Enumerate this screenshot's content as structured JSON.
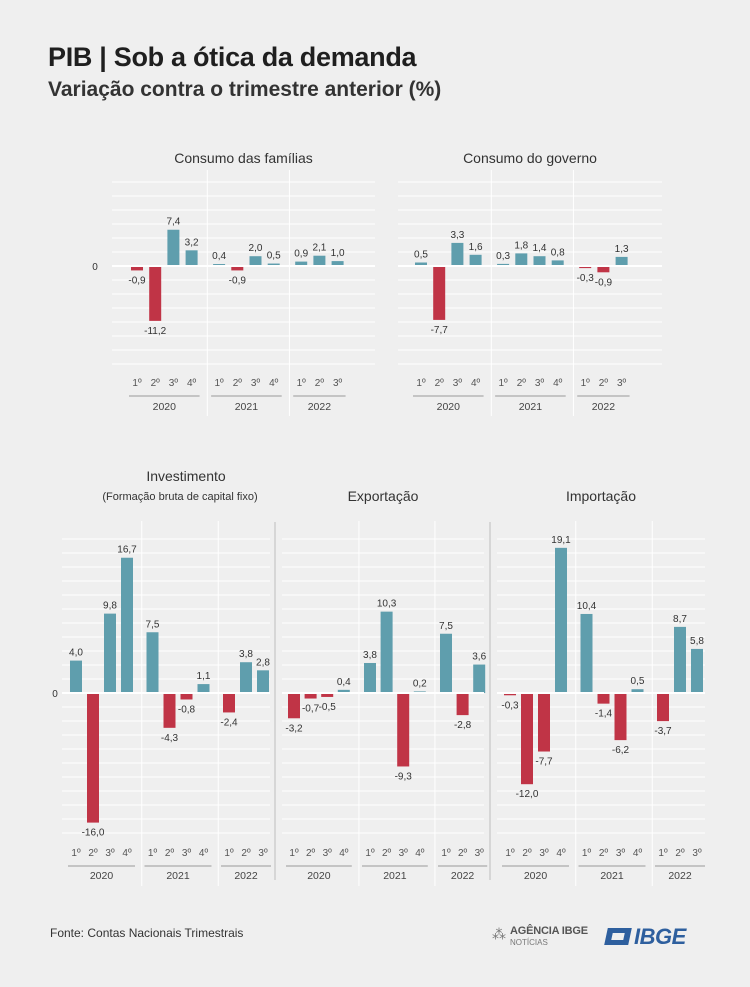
{
  "title": "PIB | Sob a ótica da demanda",
  "subtitle": "Variação contra o trimestre anterior (%)",
  "source": "Fonte: Contas Nacionais Trimestrais",
  "logos": {
    "agencia_name": "AGÊNCIA IBGE",
    "agencia_sub": "NOTÍCIAS",
    "ibge": "IBGE"
  },
  "colors": {
    "positive": "#5f9ead",
    "negative": "#c03446",
    "grid": "#ffffff",
    "zero_line": "#ffffff",
    "divider": "#d6d6d6",
    "axis_line": "#9a9a9a"
  },
  "chart_data": [
    {
      "type": "bar",
      "title": "Consumo das famílias",
      "subtitle": "",
      "zero_label": "0",
      "groups": [
        {
          "year": "2020",
          "quarters": [
            "1º",
            "2º",
            "3º",
            "4º"
          ],
          "values": [
            -0.9,
            -11.2,
            7.4,
            3.2
          ],
          "labels": [
            "-0,9",
            "-11,2",
            "7,4",
            "3,2"
          ]
        },
        {
          "year": "2021",
          "quarters": [
            "1º",
            "2º",
            "3º",
            "4º"
          ],
          "values": [
            0.4,
            -0.9,
            2.0,
            0.5
          ],
          "labels": [
            "0,4",
            "-0,9",
            "2,0",
            "0,5"
          ]
        },
        {
          "year": "2022",
          "quarters": [
            "1º",
            "2º",
            "3º"
          ],
          "values": [
            0.9,
            2.1,
            1.0
          ],
          "labels": [
            "0,9",
            "2,1",
            "1,0"
          ]
        }
      ]
    },
    {
      "type": "bar",
      "title": "Consumo do governo",
      "subtitle": "",
      "zero_label": "",
      "groups": [
        {
          "year": "2020",
          "quarters": [
            "1º",
            "2º",
            "3º",
            "4º"
          ],
          "values": [
            0.5,
            -7.7,
            3.3,
            1.6
          ],
          "labels": [
            "0,5",
            "-7,7",
            "3,3",
            "1,6"
          ]
        },
        {
          "year": "2021",
          "quarters": [
            "1º",
            "2º",
            "3º",
            "4º"
          ],
          "values": [
            0.3,
            1.8,
            1.4,
            0.8
          ],
          "labels": [
            "0,3",
            "1,8",
            "1,4",
            "0,8"
          ]
        },
        {
          "year": "2022",
          "quarters": [
            "1º",
            "2º",
            "3º"
          ],
          "values": [
            -0.3,
            -0.9,
            1.3
          ],
          "labels": [
            "-0,3",
            "-0,9",
            "1,3"
          ]
        }
      ]
    },
    {
      "type": "bar",
      "title": "Investimento",
      "subtitle": "(Formação bruta de capital fixo)",
      "zero_label": "0",
      "groups": [
        {
          "year": "2020",
          "quarters": [
            "1º",
            "2º",
            "3º",
            "4º"
          ],
          "values": [
            4.0,
            -16.0,
            9.8,
            16.7
          ],
          "labels": [
            "4,0",
            "-16,0",
            "9,8",
            "16,7"
          ]
        },
        {
          "year": "2021",
          "quarters": [
            "1º",
            "2º",
            "3º",
            "4º"
          ],
          "values": [
            7.5,
            -4.3,
            -0.8,
            1.1
          ],
          "labels": [
            "7,5",
            "-4,3",
            "-0,8",
            "1,1"
          ]
        },
        {
          "year": "2022",
          "quarters": [
            "1º",
            "2º",
            "3º"
          ],
          "values": [
            -2.4,
            3.8,
            2.8
          ],
          "labels": [
            "-2,4",
            "3,8",
            "2,8"
          ]
        }
      ]
    },
    {
      "type": "bar",
      "title": "Exportação",
      "subtitle": "",
      "zero_label": "",
      "groups": [
        {
          "year": "2020",
          "quarters": [
            "1º",
            "2º",
            "3º",
            "4º"
          ],
          "values": [
            -3.2,
            -0.7,
            -0.5,
            0.4
          ],
          "labels": [
            "-3,2",
            "-0,7",
            "-0,5",
            "0,4"
          ]
        },
        {
          "year": "2021",
          "quarters": [
            "1º",
            "2º",
            "3º",
            "4º"
          ],
          "values": [
            3.8,
            10.3,
            -9.3,
            0.2
          ],
          "labels": [
            "3,8",
            "10,3",
            "-9,3",
            "0,2"
          ]
        },
        {
          "year": "2022",
          "quarters": [
            "1º",
            "2º",
            "3º"
          ],
          "values": [
            7.5,
            -2.8,
            3.6
          ],
          "labels": [
            "7,5",
            "-2,8",
            "3,6"
          ]
        }
      ]
    },
    {
      "type": "bar",
      "title": "Importação",
      "subtitle": "",
      "zero_label": "",
      "groups": [
        {
          "year": "2020",
          "quarters": [
            "1º",
            "2º",
            "3º",
            "4º"
          ],
          "values": [
            -0.3,
            -12.0,
            -7.7,
            19.1
          ],
          "labels": [
            "-0,3",
            "-12,0",
            "-7,7",
            "19,1"
          ]
        },
        {
          "year": "2021",
          "quarters": [
            "1º",
            "2º",
            "3º",
            "4º"
          ],
          "values": [
            10.4,
            -1.4,
            -6.2,
            0.5
          ],
          "labels": [
            "10,4",
            "-1,4",
            "-6,2",
            "0,5"
          ]
        },
        {
          "year": "2022",
          "quarters": [
            "1º",
            "2º",
            "3º"
          ],
          "values": [
            -3.7,
            8.7,
            5.8
          ],
          "labels": [
            "-3,7",
            "8,7",
            "5,8"
          ]
        }
      ]
    }
  ]
}
